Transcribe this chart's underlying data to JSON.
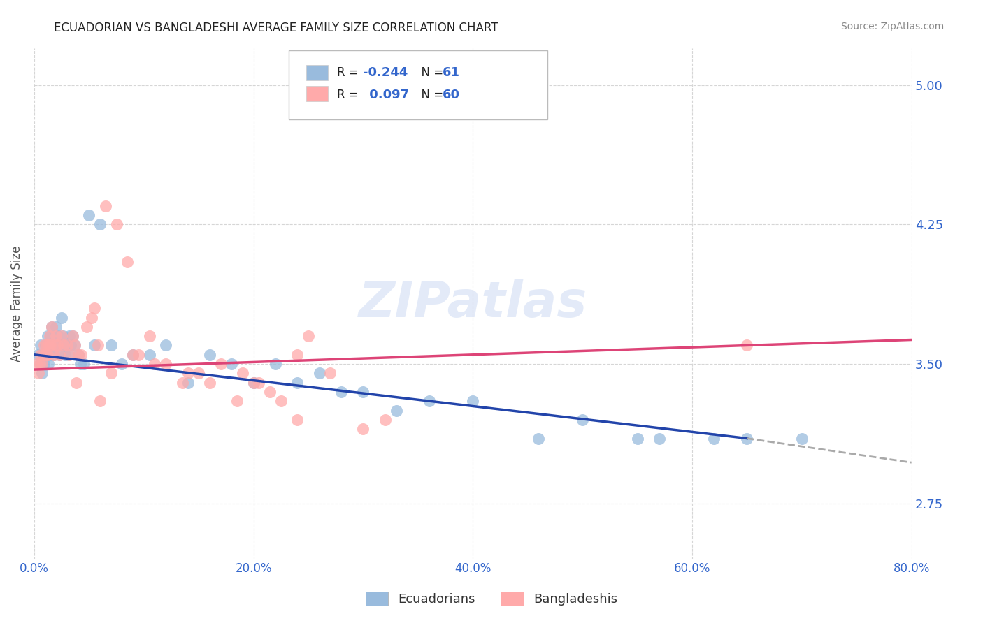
{
  "title": "ECUADORIAN VS BANGLADESHI AVERAGE FAMILY SIZE CORRELATION CHART",
  "source": "Source: ZipAtlas.com",
  "ylabel": "Average Family Size",
  "xlim": [
    0.0,
    80.0
  ],
  "ylim": [
    2.45,
    5.2
  ],
  "yticks": [
    2.75,
    3.5,
    4.25,
    5.0
  ],
  "xticks": [
    0.0,
    20.0,
    40.0,
    60.0,
    80.0
  ],
  "xtick_labels": [
    "0.0%",
    "20.0%",
    "40.0%",
    "60.0%",
    "80.0%"
  ],
  "legend_labels": [
    "Ecuadorians",
    "Bangladeshis"
  ],
  "R_blue": -0.244,
  "N_blue": 61,
  "R_pink": 0.097,
  "N_pink": 60,
  "blue_color": "#99bbdd",
  "pink_color": "#ffaaaa",
  "blue_line_color": "#2244aa",
  "pink_line_color": "#dd4477",
  "axis_color": "#3366cc",
  "watermark": "ZIPatlas",
  "background_color": "#ffffff",
  "grid_color": "#cccccc",
  "blue_x": [
    0.3,
    0.5,
    0.6,
    0.7,
    0.8,
    0.9,
    1.0,
    1.1,
    1.2,
    1.3,
    1.4,
    1.5,
    1.6,
    1.7,
    1.8,
    1.9,
    2.0,
    2.1,
    2.2,
    2.3,
    2.4,
    2.5,
    2.6,
    2.7,
    2.8,
    3.0,
    3.1,
    3.2,
    3.3,
    3.5,
    3.7,
    4.0,
    4.2,
    4.5,
    5.0,
    5.5,
    6.0,
    7.0,
    8.0,
    9.0,
    10.5,
    12.0,
    14.0,
    16.0,
    18.0,
    20.0,
    22.0,
    24.0,
    26.0,
    28.0,
    30.0,
    33.0,
    36.0,
    40.0,
    46.0,
    50.0,
    57.0,
    62.0,
    65.0,
    70.0,
    55.0
  ],
  "blue_y": [
    3.55,
    3.5,
    3.6,
    3.45,
    3.55,
    3.5,
    3.6,
    3.55,
    3.65,
    3.5,
    3.55,
    3.65,
    3.7,
    3.6,
    3.55,
    3.65,
    3.7,
    3.6,
    3.65,
    3.55,
    3.6,
    3.75,
    3.65,
    3.6,
    3.55,
    3.6,
    3.55,
    3.65,
    3.6,
    3.65,
    3.6,
    3.55,
    3.5,
    3.5,
    4.3,
    3.6,
    4.25,
    3.6,
    3.5,
    3.55,
    3.55,
    3.6,
    3.4,
    3.55,
    3.5,
    3.4,
    3.5,
    3.4,
    3.45,
    3.35,
    3.35,
    3.25,
    3.3,
    3.3,
    3.1,
    3.2,
    3.1,
    3.1,
    3.1,
    3.1,
    3.1
  ],
  "pink_x": [
    0.2,
    0.4,
    0.5,
    0.6,
    0.7,
    0.8,
    0.9,
    1.0,
    1.1,
    1.2,
    1.3,
    1.4,
    1.5,
    1.6,
    1.8,
    1.9,
    2.0,
    2.1,
    2.3,
    2.5,
    2.7,
    3.0,
    3.2,
    3.5,
    3.7,
    4.0,
    4.3,
    4.8,
    5.2,
    5.8,
    6.0,
    6.5,
    7.5,
    8.5,
    9.5,
    10.5,
    12.0,
    13.5,
    15.0,
    17.0,
    19.0,
    20.0,
    21.5,
    22.5,
    24.0,
    25.0,
    27.0,
    30.0,
    32.0,
    9.0,
    11.0,
    14.0,
    16.0,
    18.5,
    20.5,
    24.0,
    7.0,
    5.5,
    3.8,
    65.0
  ],
  "pink_y": [
    3.5,
    3.45,
    3.5,
    3.55,
    3.5,
    3.55,
    3.6,
    3.55,
    3.6,
    3.55,
    3.6,
    3.65,
    3.6,
    3.7,
    3.55,
    3.6,
    3.65,
    3.6,
    3.55,
    3.65,
    3.6,
    3.6,
    3.55,
    3.65,
    3.6,
    3.55,
    3.55,
    3.7,
    3.75,
    3.6,
    3.3,
    4.35,
    4.25,
    4.05,
    3.55,
    3.65,
    3.5,
    3.4,
    3.45,
    3.5,
    3.45,
    3.4,
    3.35,
    3.3,
    3.55,
    3.65,
    3.45,
    3.15,
    3.2,
    3.55,
    3.5,
    3.45,
    3.4,
    3.3,
    3.4,
    3.2,
    3.45,
    3.8,
    3.4,
    3.6
  ],
  "blue_trend_x0": 0.0,
  "blue_trend_y0": 3.55,
  "blue_trend_x1": 65.0,
  "blue_trend_y1": 3.1,
  "blue_dash_x0": 65.0,
  "blue_dash_y0": 3.1,
  "blue_dash_x1": 80.0,
  "blue_dash_y1": 2.97,
  "pink_trend_x0": 0.0,
  "pink_trend_y0": 3.47,
  "pink_trend_x1": 80.0,
  "pink_trend_y1": 3.63
}
